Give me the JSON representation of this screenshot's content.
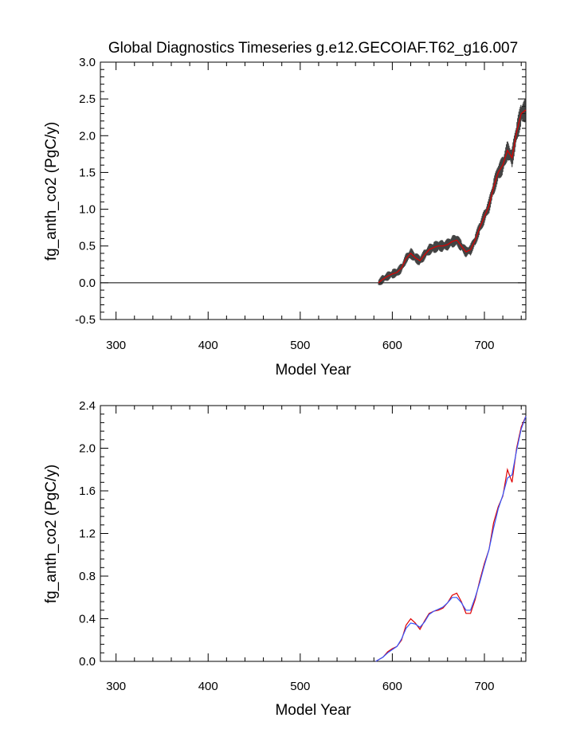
{
  "title": "Global Diagnostics Timeseries g.e12.GECOIAF.T62_g16.007",
  "chart_data": [
    {
      "type": "line",
      "title": "Global Diagnostics Timeseries g.e12.GECOIAF.T62_g16.007",
      "xlabel": "Model Year",
      "ylabel": "fg_anth_co2 (PgC/y)",
      "xlim": [
        283,
        745
      ],
      "ylim": [
        -0.5,
        3.0
      ],
      "xticks": [
        300,
        400,
        500,
        600,
        700
      ],
      "yticks": [
        -0.5,
        0.0,
        0.5,
        1.0,
        1.5,
        2.0,
        2.5,
        3.0
      ],
      "ytick_labels": [
        "-0.5",
        "0.0",
        "0.5",
        "1.0",
        "1.5",
        "2.0",
        "2.5",
        "3.0"
      ],
      "reference_line": 0.0,
      "series": [
        {
          "color": "#222222",
          "style": "high-frequency band",
          "x": [
            585,
            590,
            595,
            600,
            605,
            610,
            615,
            620,
            625,
            630,
            635,
            640,
            645,
            650,
            655,
            660,
            665,
            670,
            675,
            680,
            685,
            690,
            695,
            700,
            705,
            710,
            715,
            720,
            725,
            730,
            735,
            740,
            745
          ],
          "y": [
            0.0,
            0.05,
            0.09,
            0.12,
            0.14,
            0.2,
            0.33,
            0.4,
            0.34,
            0.3,
            0.38,
            0.45,
            0.48,
            0.5,
            0.5,
            0.52,
            0.56,
            0.58,
            0.5,
            0.42,
            0.45,
            0.58,
            0.75,
            0.9,
            1.05,
            1.3,
            1.5,
            1.6,
            1.8,
            1.7,
            2.05,
            2.3,
            2.35
          ],
          "band": 0.15
        },
        {
          "color": "#e00000",
          "style": "annual mean",
          "x": [
            585,
            590,
            595,
            600,
            605,
            610,
            615,
            620,
            625,
            630,
            635,
            640,
            645,
            650,
            655,
            660,
            665,
            670,
            675,
            680,
            685,
            690,
            695,
            700,
            705,
            710,
            715,
            720,
            725,
            730,
            735,
            740,
            745
          ],
          "y": [
            0.0,
            0.05,
            0.09,
            0.12,
            0.14,
            0.2,
            0.33,
            0.4,
            0.34,
            0.3,
            0.38,
            0.45,
            0.48,
            0.5,
            0.5,
            0.52,
            0.56,
            0.58,
            0.5,
            0.42,
            0.45,
            0.58,
            0.75,
            0.9,
            1.05,
            1.3,
            1.5,
            1.6,
            1.8,
            1.7,
            2.05,
            2.3,
            2.35
          ]
        }
      ]
    },
    {
      "type": "line",
      "title": "",
      "xlabel": "Model Year",
      "ylabel": "fg_anth_co2 (PgC/y)",
      "xlim": [
        283,
        745
      ],
      "ylim": [
        0.0,
        2.4
      ],
      "xticks": [
        300,
        400,
        500,
        600,
        700
      ],
      "yticks": [
        0.0,
        0.4,
        0.8,
        1.2,
        1.6,
        2.0,
        2.4
      ],
      "ytick_labels": [
        "0.0",
        "0.4",
        "0.8",
        "1.2",
        "1.6",
        "2.0",
        "2.4"
      ],
      "series": [
        {
          "color": "#e00000",
          "x": [
            582,
            590,
            595,
            600,
            605,
            610,
            615,
            620,
            625,
            630,
            635,
            640,
            645,
            650,
            655,
            660,
            665,
            670,
            675,
            680,
            685,
            690,
            695,
            700,
            705,
            710,
            715,
            720,
            725,
            730,
            735,
            740,
            745
          ],
          "y": [
            0.0,
            0.04,
            0.09,
            0.12,
            0.14,
            0.2,
            0.34,
            0.4,
            0.36,
            0.3,
            0.38,
            0.45,
            0.47,
            0.48,
            0.5,
            0.55,
            0.62,
            0.64,
            0.56,
            0.45,
            0.45,
            0.58,
            0.76,
            0.92,
            1.05,
            1.3,
            1.45,
            1.55,
            1.8,
            1.68,
            2.0,
            2.2,
            2.3
          ]
        },
        {
          "color": "#3355ff",
          "x": [
            582,
            590,
            595,
            600,
            605,
            610,
            615,
            620,
            625,
            630,
            635,
            640,
            645,
            650,
            655,
            660,
            665,
            670,
            675,
            680,
            685,
            690,
            695,
            700,
            705,
            710,
            715,
            720,
            725,
            730,
            735,
            740,
            745
          ],
          "y": [
            0.0,
            0.04,
            0.08,
            0.11,
            0.14,
            0.21,
            0.31,
            0.36,
            0.35,
            0.32,
            0.37,
            0.44,
            0.47,
            0.49,
            0.51,
            0.55,
            0.6,
            0.6,
            0.55,
            0.48,
            0.48,
            0.6,
            0.74,
            0.9,
            1.05,
            1.25,
            1.43,
            1.56,
            1.72,
            1.75,
            1.98,
            2.18,
            2.3
          ]
        }
      ]
    }
  ]
}
